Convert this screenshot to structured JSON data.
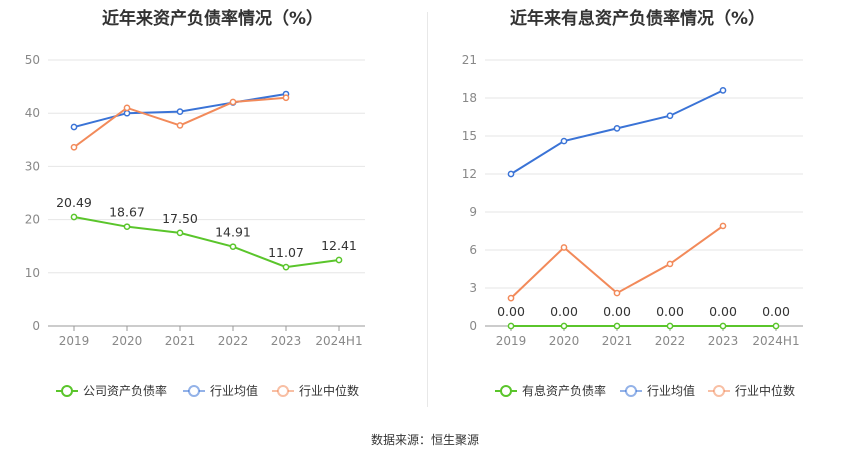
{
  "source_label": "数据来源：恒生聚源",
  "chart_data": [
    {
      "type": "line",
      "title": "近年来资产负债率情况（%）",
      "categories": [
        "2019",
        "2020",
        "2021",
        "2022",
        "2023",
        "2024H1"
      ],
      "ylim": [
        0,
        50
      ],
      "yticks": [
        "0",
        "10",
        "20",
        "30",
        "40",
        "50"
      ],
      "grid": true,
      "legend_position": "bottom",
      "series": [
        {
          "name": "公司资产负债率",
          "color": "#5ac52b",
          "values": [
            20.49,
            18.67,
            17.5,
            14.91,
            11.07,
            12.41
          ],
          "labels": [
            "20.49",
            "18.67",
            "17.50",
            "14.91",
            "11.07",
            "12.41"
          ]
        },
        {
          "name": "行业均值",
          "color": "#3a73d6",
          "values": [
            37.4,
            40.0,
            40.3,
            42.0,
            43.6,
            null
          ]
        },
        {
          "name": "行业中位数",
          "color": "#f28a5a",
          "values": [
            33.6,
            41.0,
            37.7,
            42.1,
            42.9,
            null
          ]
        }
      ]
    },
    {
      "type": "line",
      "title": "近年来有息资产负债率情况（%）",
      "categories": [
        "2019",
        "2020",
        "2021",
        "2022",
        "2023",
        "2024H1"
      ],
      "ylim": [
        0,
        21
      ],
      "yticks": [
        "0",
        "3",
        "6",
        "9",
        "12",
        "15",
        "18",
        "21"
      ],
      "grid": true,
      "legend_position": "bottom",
      "series": [
        {
          "name": "有息资产负债率",
          "color": "#5ac52b",
          "values": [
            0.0,
            0.0,
            0.0,
            0.0,
            0.0,
            0.0
          ],
          "labels": [
            "0.00",
            "0.00",
            "0.00",
            "0.00",
            "0.00",
            "0.00"
          ]
        },
        {
          "name": "行业均值",
          "color": "#3a73d6",
          "values": [
            12.0,
            14.6,
            15.6,
            16.6,
            18.6,
            null
          ]
        },
        {
          "name": "行业中位数",
          "color": "#f28a5a",
          "values": [
            2.2,
            6.2,
            2.6,
            4.9,
            7.9,
            null
          ]
        }
      ]
    }
  ]
}
